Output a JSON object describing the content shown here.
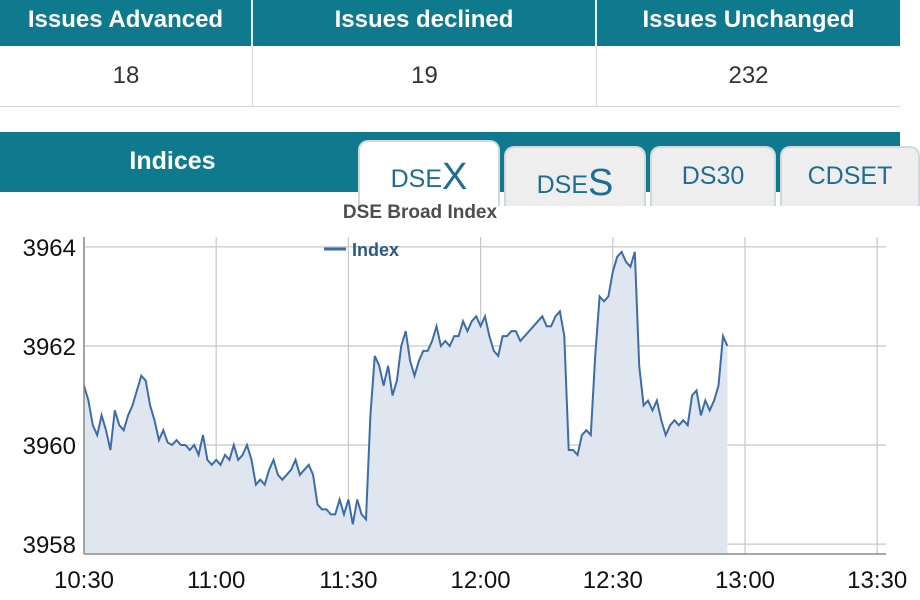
{
  "stats": {
    "headers": [
      "Issues Advanced",
      "Issues declined",
      "Issues Unchanged"
    ],
    "values": [
      "18",
      "19",
      "232"
    ]
  },
  "indices": {
    "title": "Indices",
    "tabs": [
      {
        "prefix": "DSE",
        "suffix": "X",
        "active": true
      },
      {
        "prefix": "DSE",
        "suffix": "S",
        "active": false
      },
      {
        "prefix": "DS30",
        "suffix": "",
        "active": false
      },
      {
        "prefix": "CDSET",
        "suffix": "",
        "active": false
      }
    ]
  },
  "colors": {
    "header_bg": "#0f7a8e",
    "line": "#3d6da8",
    "area_fill": "#dfe6ef",
    "grid": "#c8c8c8"
  },
  "chart_data": {
    "type": "area",
    "title": "DSE Broad Index",
    "legend": "Index",
    "legend_position": "top-center",
    "grid": true,
    "x_ticks": [
      "10:30",
      "11:00",
      "11:30",
      "12:00",
      "12:30",
      "13:00",
      "13:30"
    ],
    "xlim": [
      "10:30",
      "13:32"
    ],
    "y_ticks": [
      3958,
      3960,
      3962,
      3964
    ],
    "ylim": [
      3957.8,
      3964.2
    ],
    "series": [
      {
        "name": "Index",
        "points": [
          [
            "10:30",
            3961.2
          ],
          [
            "10:31",
            3960.9
          ],
          [
            "10:32",
            3960.4
          ],
          [
            "10:33",
            3960.2
          ],
          [
            "10:34",
            3960.6
          ],
          [
            "10:35",
            3960.3
          ],
          [
            "10:36",
            3959.9
          ],
          [
            "10:37",
            3960.7
          ],
          [
            "10:38",
            3960.4
          ],
          [
            "10:39",
            3960.3
          ],
          [
            "10:40",
            3960.6
          ],
          [
            "10:41",
            3960.8
          ],
          [
            "10:42",
            3961.1
          ],
          [
            "10:43",
            3961.4
          ],
          [
            "10:44",
            3961.3
          ],
          [
            "10:45",
            3960.8
          ],
          [
            "10:46",
            3960.5
          ],
          [
            "10:47",
            3960.1
          ],
          [
            "10:48",
            3960.3
          ],
          [
            "10:49",
            3960.05
          ],
          [
            "10:50",
            3960.0
          ],
          [
            "10:51",
            3960.1
          ],
          [
            "10:52",
            3960.0
          ],
          [
            "10:53",
            3960.0
          ],
          [
            "10:54",
            3959.9
          ],
          [
            "10:55",
            3960.0
          ],
          [
            "10:56",
            3959.8
          ],
          [
            "10:57",
            3960.2
          ],
          [
            "10:58",
            3959.7
          ],
          [
            "10:59",
            3959.6
          ],
          [
            "11:00",
            3959.7
          ],
          [
            "11:01",
            3959.6
          ],
          [
            "11:02",
            3959.8
          ],
          [
            "11:03",
            3959.7
          ],
          [
            "11:04",
            3960.0
          ],
          [
            "11:05",
            3959.7
          ],
          [
            "11:06",
            3959.8
          ],
          [
            "11:07",
            3960.0
          ],
          [
            "11:08",
            3959.7
          ],
          [
            "11:09",
            3959.2
          ],
          [
            "11:10",
            3959.3
          ],
          [
            "11:11",
            3959.2
          ],
          [
            "11:12",
            3959.5
          ],
          [
            "11:13",
            3959.7
          ],
          [
            "11:14",
            3959.4
          ],
          [
            "11:15",
            3959.3
          ],
          [
            "11:16",
            3959.4
          ],
          [
            "11:17",
            3959.5
          ],
          [
            "11:18",
            3959.7
          ],
          [
            "11:19",
            3959.4
          ],
          [
            "11:20",
            3959.5
          ],
          [
            "11:21",
            3959.6
          ],
          [
            "11:22",
            3959.4
          ],
          [
            "11:23",
            3958.8
          ],
          [
            "11:24",
            3958.7
          ],
          [
            "11:25",
            3958.7
          ],
          [
            "11:26",
            3958.6
          ],
          [
            "11:27",
            3958.6
          ],
          [
            "11:28",
            3958.9
          ],
          [
            "11:29",
            3958.6
          ],
          [
            "11:30",
            3958.9
          ],
          [
            "11:31",
            3958.4
          ],
          [
            "11:32",
            3958.9
          ],
          [
            "11:33",
            3958.6
          ],
          [
            "11:34",
            3958.5
          ],
          [
            "11:35",
            3960.6
          ],
          [
            "11:36",
            3961.8
          ],
          [
            "11:37",
            3961.6
          ],
          [
            "11:38",
            3961.2
          ],
          [
            "11:39",
            3961.6
          ],
          [
            "11:40",
            3961.0
          ],
          [
            "11:41",
            3961.3
          ],
          [
            "11:42",
            3962.0
          ],
          [
            "11:43",
            3962.3
          ],
          [
            "11:44",
            3961.7
          ],
          [
            "11:45",
            3961.4
          ],
          [
            "11:46",
            3961.7
          ],
          [
            "11:47",
            3961.9
          ],
          [
            "11:48",
            3961.9
          ],
          [
            "11:49",
            3962.1
          ],
          [
            "11:50",
            3962.4
          ],
          [
            "11:51",
            3962.0
          ],
          [
            "11:52",
            3962.1
          ],
          [
            "11:53",
            3962.0
          ],
          [
            "11:54",
            3962.2
          ],
          [
            "11:55",
            3962.2
          ],
          [
            "11:56",
            3962.5
          ],
          [
            "11:57",
            3962.3
          ],
          [
            "11:58",
            3962.5
          ],
          [
            "11:59",
            3962.6
          ],
          [
            "12:00",
            3962.4
          ],
          [
            "12:01",
            3962.6
          ],
          [
            "12:02",
            3962.2
          ],
          [
            "12:03",
            3961.9
          ],
          [
            "12:04",
            3961.8
          ],
          [
            "12:05",
            3962.2
          ],
          [
            "12:06",
            3962.2
          ],
          [
            "12:07",
            3962.3
          ],
          [
            "12:08",
            3962.3
          ],
          [
            "12:09",
            3962.1
          ],
          [
            "12:10",
            3962.2
          ],
          [
            "12:11",
            3962.3
          ],
          [
            "12:12",
            3962.4
          ],
          [
            "12:13",
            3962.5
          ],
          [
            "12:14",
            3962.6
          ],
          [
            "12:15",
            3962.4
          ],
          [
            "12:16",
            3962.4
          ],
          [
            "12:17",
            3962.6
          ],
          [
            "12:18",
            3962.7
          ],
          [
            "12:19",
            3962.2
          ],
          [
            "12:20",
            3959.9
          ],
          [
            "12:21",
            3959.9
          ],
          [
            "12:22",
            3959.8
          ],
          [
            "12:23",
            3960.2
          ],
          [
            "12:24",
            3960.3
          ],
          [
            "12:25",
            3960.2
          ],
          [
            "12:26",
            3961.8
          ],
          [
            "12:27",
            3963.0
          ],
          [
            "12:28",
            3962.9
          ],
          [
            "12:29",
            3963.0
          ],
          [
            "12:30",
            3963.5
          ],
          [
            "12:31",
            3963.8
          ],
          [
            "12:32",
            3963.9
          ],
          [
            "12:33",
            3963.7
          ],
          [
            "12:34",
            3963.6
          ],
          [
            "12:35",
            3963.9
          ],
          [
            "12:36",
            3961.6
          ],
          [
            "12:37",
            3960.8
          ],
          [
            "12:38",
            3960.9
          ],
          [
            "12:39",
            3960.7
          ],
          [
            "12:40",
            3960.9
          ],
          [
            "12:41",
            3960.5
          ],
          [
            "12:42",
            3960.2
          ],
          [
            "12:43",
            3960.4
          ],
          [
            "12:44",
            3960.5
          ],
          [
            "12:45",
            3960.4
          ],
          [
            "12:46",
            3960.5
          ],
          [
            "12:47",
            3960.4
          ],
          [
            "12:48",
            3961.0
          ],
          [
            "12:49",
            3961.1
          ],
          [
            "12:50",
            3960.6
          ],
          [
            "12:51",
            3960.9
          ],
          [
            "12:52",
            3960.7
          ],
          [
            "12:53",
            3960.9
          ],
          [
            "12:54",
            3961.2
          ],
          [
            "12:55",
            3962.2
          ],
          [
            "12:56",
            3962.0
          ]
        ]
      }
    ]
  }
}
